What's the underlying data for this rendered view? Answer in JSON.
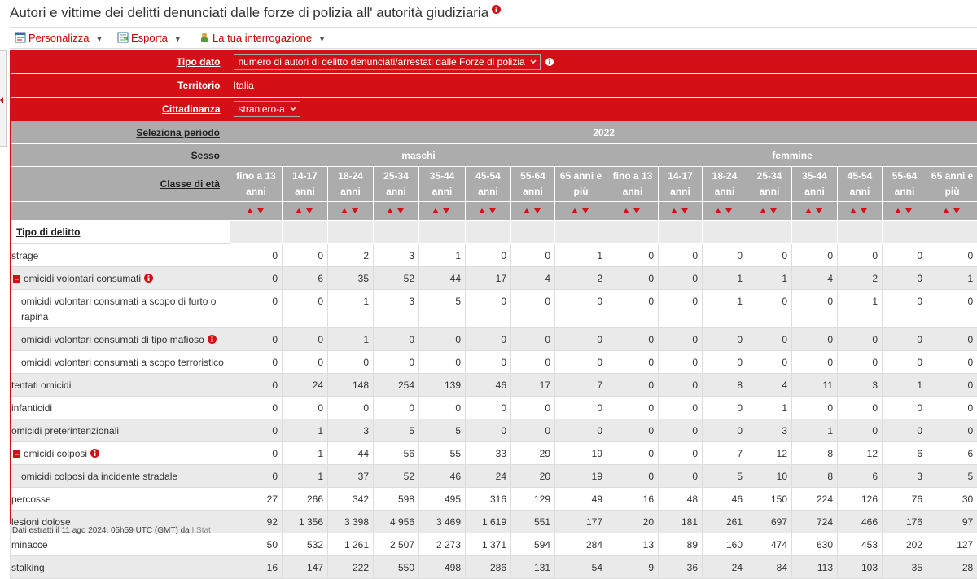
{
  "header": {
    "title": "Autori e vittime dei delitti denunciati dalle forze di polizia all' autorità giudiziaria"
  },
  "toolbar": [
    "Personalizza",
    "Esporta",
    "La tua interrogazione"
  ],
  "filters": [
    {
      "label": "Tipo dato",
      "value": "numero di autori di delitto denunciati/arrestati dalle Forze di polizia",
      "dropdown": true,
      "info": true
    },
    {
      "label": "Territorio",
      "value": "Italia",
      "dropdown": false,
      "info": false
    },
    {
      "label": "Cittadinanza",
      "value": "straniero-a",
      "dropdown": true,
      "info": false
    }
  ],
  "period": {
    "label": "Seleziona periodo",
    "value": "2022"
  },
  "sex": {
    "label": "Sesso",
    "values": [
      "maschi",
      "femmine"
    ]
  },
  "age": {
    "label": "Classe di età",
    "values": [
      "fino a 13 anni",
      "14-17 anni",
      "18-24 anni",
      "25-34 anni",
      "35-44 anni",
      "45-54 anni",
      "55-64 anni",
      "65 anni e più"
    ]
  },
  "table": {
    "row_header": "Tipo di delitto",
    "rows": [
      {
        "label": "strage",
        "level": 0,
        "collapse": false,
        "info": false,
        "values": [
          "0",
          "0",
          "2",
          "3",
          "1",
          "0",
          "0",
          "1",
          "0",
          "0",
          "0",
          "0",
          "0",
          "0",
          "0",
          "0"
        ]
      },
      {
        "label": "omicidi volontari consumati",
        "level": 0,
        "collapse": true,
        "info": true,
        "values": [
          "0",
          "6",
          "35",
          "52",
          "44",
          "17",
          "4",
          "2",
          "0",
          "0",
          "1",
          "1",
          "4",
          "2",
          "0",
          "1"
        ]
      },
      {
        "label": "omicidi volontari consumati a scopo di furto o rapina",
        "level": 1,
        "collapse": false,
        "info": false,
        "values": [
          "0",
          "0",
          "1",
          "3",
          "5",
          "0",
          "0",
          "0",
          "0",
          "0",
          "1",
          "0",
          "0",
          "1",
          "0",
          "0"
        ]
      },
      {
        "label": "omicidi volontari consumati di tipo mafioso",
        "level": 1,
        "collapse": false,
        "info": true,
        "values": [
          "0",
          "0",
          "1",
          "0",
          "0",
          "0",
          "0",
          "0",
          "0",
          "0",
          "0",
          "0",
          "0",
          "0",
          "0",
          "0"
        ]
      },
      {
        "label": "omicidi volontari consumati a scopo terroristico",
        "level": 1,
        "collapse": false,
        "info": false,
        "values": [
          "0",
          "0",
          "0",
          "0",
          "0",
          "0",
          "0",
          "0",
          "0",
          "0",
          "0",
          "0",
          "0",
          "0",
          "0",
          "0"
        ]
      },
      {
        "label": "tentati omicidi",
        "level": 0,
        "collapse": false,
        "info": false,
        "values": [
          "0",
          "24",
          "148",
          "254",
          "139",
          "46",
          "17",
          "7",
          "0",
          "0",
          "8",
          "4",
          "11",
          "3",
          "1",
          "0"
        ]
      },
      {
        "label": "infanticidi",
        "level": 0,
        "collapse": false,
        "info": false,
        "values": [
          "0",
          "0",
          "0",
          "0",
          "0",
          "0",
          "0",
          "0",
          "0",
          "0",
          "0",
          "1",
          "0",
          "0",
          "0",
          "0"
        ]
      },
      {
        "label": "omicidi preterintenzionali",
        "level": 0,
        "collapse": false,
        "info": false,
        "values": [
          "0",
          "1",
          "3",
          "5",
          "5",
          "0",
          "0",
          "0",
          "0",
          "0",
          "0",
          "3",
          "1",
          "0",
          "0",
          "0"
        ]
      },
      {
        "label": "omicidi colposi",
        "level": 0,
        "collapse": true,
        "info": true,
        "values": [
          "0",
          "1",
          "44",
          "56",
          "55",
          "33",
          "29",
          "19",
          "0",
          "0",
          "7",
          "12",
          "8",
          "12",
          "6",
          "6"
        ]
      },
      {
        "label": "omicidi colposi da incidente stradale",
        "level": 1,
        "collapse": false,
        "info": false,
        "values": [
          "0",
          "1",
          "37",
          "52",
          "46",
          "24",
          "20",
          "19",
          "0",
          "0",
          "5",
          "10",
          "8",
          "6",
          "3",
          "5"
        ]
      },
      {
        "label": "percosse",
        "level": 0,
        "collapse": false,
        "info": false,
        "values": [
          "27",
          "266",
          "342",
          "598",
          "495",
          "316",
          "129",
          "49",
          "16",
          "48",
          "46",
          "150",
          "224",
          "126",
          "76",
          "30"
        ]
      },
      {
        "label": "lesioni dolose",
        "level": 0,
        "collapse": false,
        "info": false,
        "values": [
          "92",
          "1 356",
          "3 398",
          "4 956",
          "3 469",
          "1 619",
          "551",
          "177",
          "20",
          "181",
          "261",
          "697",
          "724",
          "466",
          "176",
          "97"
        ]
      },
      {
        "label": "minacce",
        "level": 0,
        "collapse": false,
        "info": false,
        "values": [
          "50",
          "532",
          "1 261",
          "2 507",
          "2 273",
          "1 371",
          "594",
          "284",
          "13",
          "89",
          "160",
          "474",
          "630",
          "453",
          "202",
          "127"
        ]
      },
      {
        "label": "stalking",
        "level": 0,
        "collapse": false,
        "info": false,
        "values": [
          "16",
          "147",
          "222",
          "550",
          "498",
          "286",
          "131",
          "54",
          "9",
          "36",
          "24",
          "84",
          "113",
          "103",
          "35",
          "28"
        ]
      }
    ]
  },
  "footer": {
    "text": "Dati estratti il 11 ago 2024, 05h59 UTC (GMT) da",
    "link": "I.Stat"
  }
}
